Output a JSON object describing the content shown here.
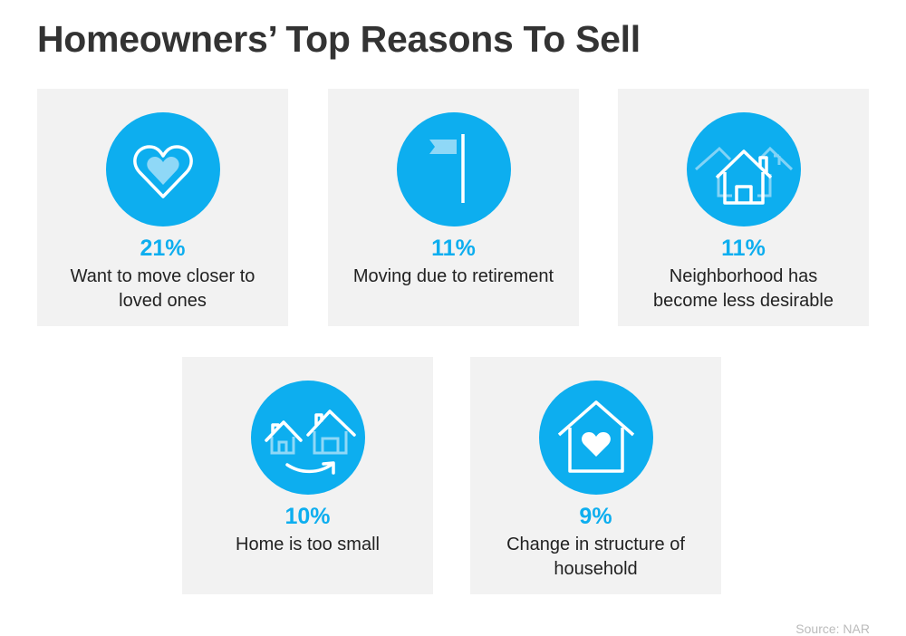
{
  "title": "Homeowners’ Top Reasons To Sell",
  "colors": {
    "accent": "#0DAEEF",
    "card_bg": "#f2f2f2",
    "title": "#333333"
  },
  "reasons": [
    {
      "percent": "21%",
      "label": "Want to move closer to loved ones",
      "icon": "heart-icon"
    },
    {
      "percent": "11%",
      "label": "Moving due to retirement",
      "icon": "flag-icon"
    },
    {
      "percent": "11%",
      "label": "Neighborhood has become less desirable",
      "icon": "neighborhood-houses-icon"
    },
    {
      "percent": "10%",
      "label": "Home is too small",
      "icon": "move-to-bigger-house-icon"
    },
    {
      "percent": "9%",
      "label": "Change in structure of household",
      "icon": "house-heart-icon"
    }
  ],
  "source": "Source: NAR"
}
